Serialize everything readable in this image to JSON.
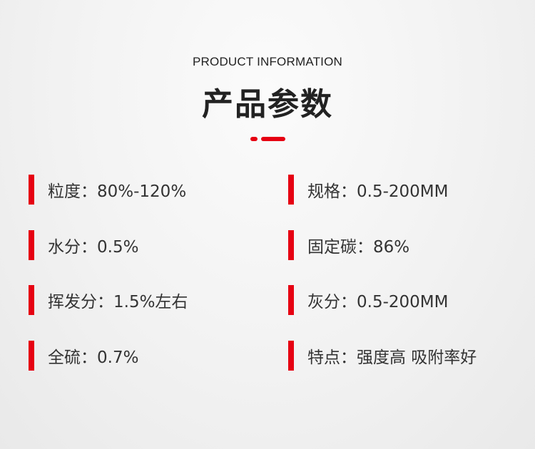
{
  "header": {
    "subtitle": "PRODUCT INFORMATION",
    "title": "产品参数",
    "accent_color": "#e60012"
  },
  "params": [
    {
      "text": "粒度：80%-120%"
    },
    {
      "text": "规格：0.5-200MM"
    },
    {
      "text": "水分：0.5%"
    },
    {
      "text": "固定碳：86%"
    },
    {
      "text": "挥发分：1.5%左右"
    },
    {
      "text": "灰分：0.5-200MM"
    },
    {
      "text": "全硫：0.7%"
    },
    {
      "text": "特点：强度高 吸附率好"
    }
  ]
}
